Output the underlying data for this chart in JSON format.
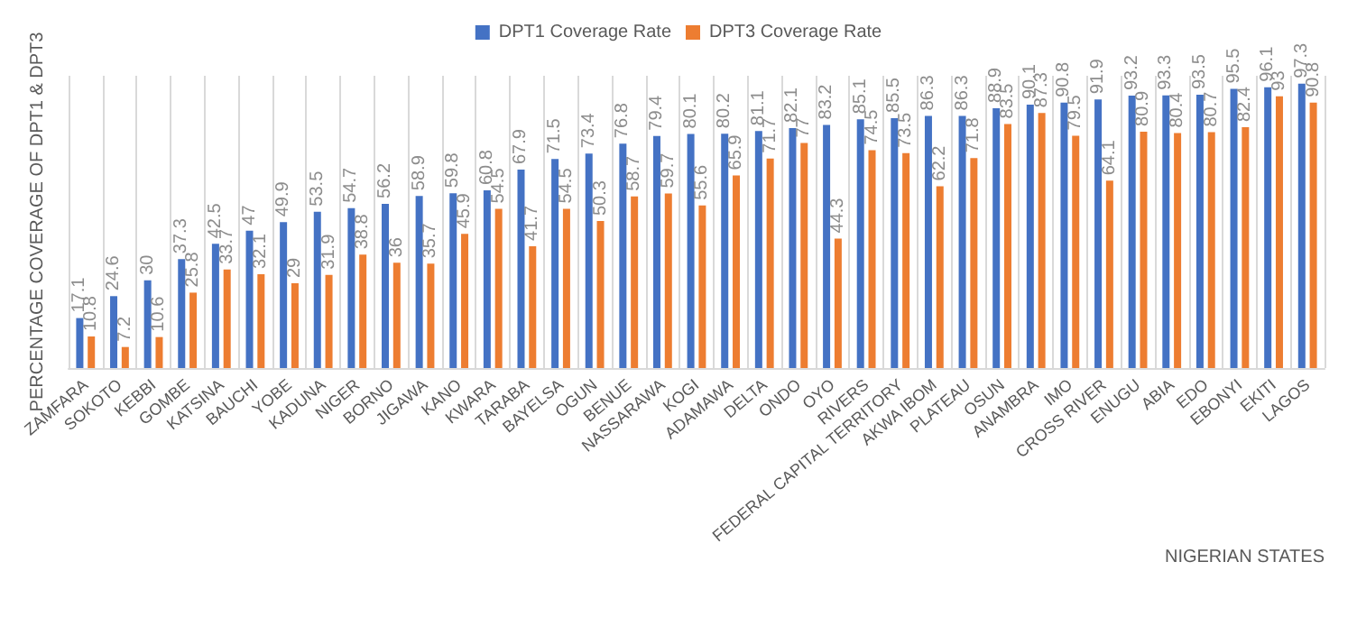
{
  "chart_data": {
    "type": "bar",
    "ylabel": "PERCENTAGE COVERAGE OF DPT1 & DPT3",
    "xlabel": "NIGERIAN STATES",
    "categories": [
      "ZAMFARA",
      "SOKOTO",
      "KEBBI",
      "GOMBE",
      "KATSINA",
      "BAUCHI",
      "YOBE",
      "KADUNA",
      "NIGER",
      "BORNO",
      "JIGAWA",
      "KANO",
      "KWARA",
      "TARABA",
      "BAYELSA",
      "OGUN",
      "BENUE",
      "NASSARAWA",
      "KOGI",
      "ADAMAWA",
      "DELTA",
      "ONDO",
      "OYO",
      "RIVERS",
      "FEDERAL CAPITAL TERRITORY",
      "AKWA IBOM",
      "PLATEAU",
      "OSUN",
      "ANAMBRA",
      "IMO",
      "CROSS RIVER",
      "ENUGU",
      "ABIA",
      "EDO",
      "EBONYI",
      "EKITI",
      "LAGOS"
    ],
    "series": [
      {
        "name": "DPT1 Coverage Rate",
        "color": "#4472c4",
        "values": [
          17.1,
          24.6,
          30,
          37.3,
          42.5,
          47,
          49.9,
          53.5,
          54.7,
          56.2,
          58.9,
          59.8,
          60.8,
          67.9,
          71.5,
          73.4,
          76.8,
          79.4,
          80.1,
          80.2,
          81.1,
          82.1,
          83.2,
          85.1,
          85.5,
          86.3,
          86.3,
          88.9,
          90.1,
          90.8,
          91.9,
          93.2,
          93.3,
          93.5,
          95.5,
          96.1,
          97.3
        ]
      },
      {
        "name": "DPT3 Coverage Rate",
        "color": "#ed7d31",
        "values": [
          10.8,
          7.2,
          10.6,
          25.8,
          33.7,
          32.1,
          29,
          31.9,
          38.8,
          36,
          35.7,
          45.9,
          54.5,
          41.7,
          54.5,
          50.3,
          58.7,
          59.7,
          55.6,
          65.9,
          71.7,
          77,
          44.3,
          74.5,
          73.5,
          62.2,
          71.8,
          83.5,
          87.3,
          79.5,
          64.1,
          80.9,
          80.4,
          80.7,
          82.4,
          93,
          90.8
        ]
      }
    ],
    "data_labels": true,
    "grid": "x",
    "legend": "top",
    "tick_labels": "x"
  }
}
